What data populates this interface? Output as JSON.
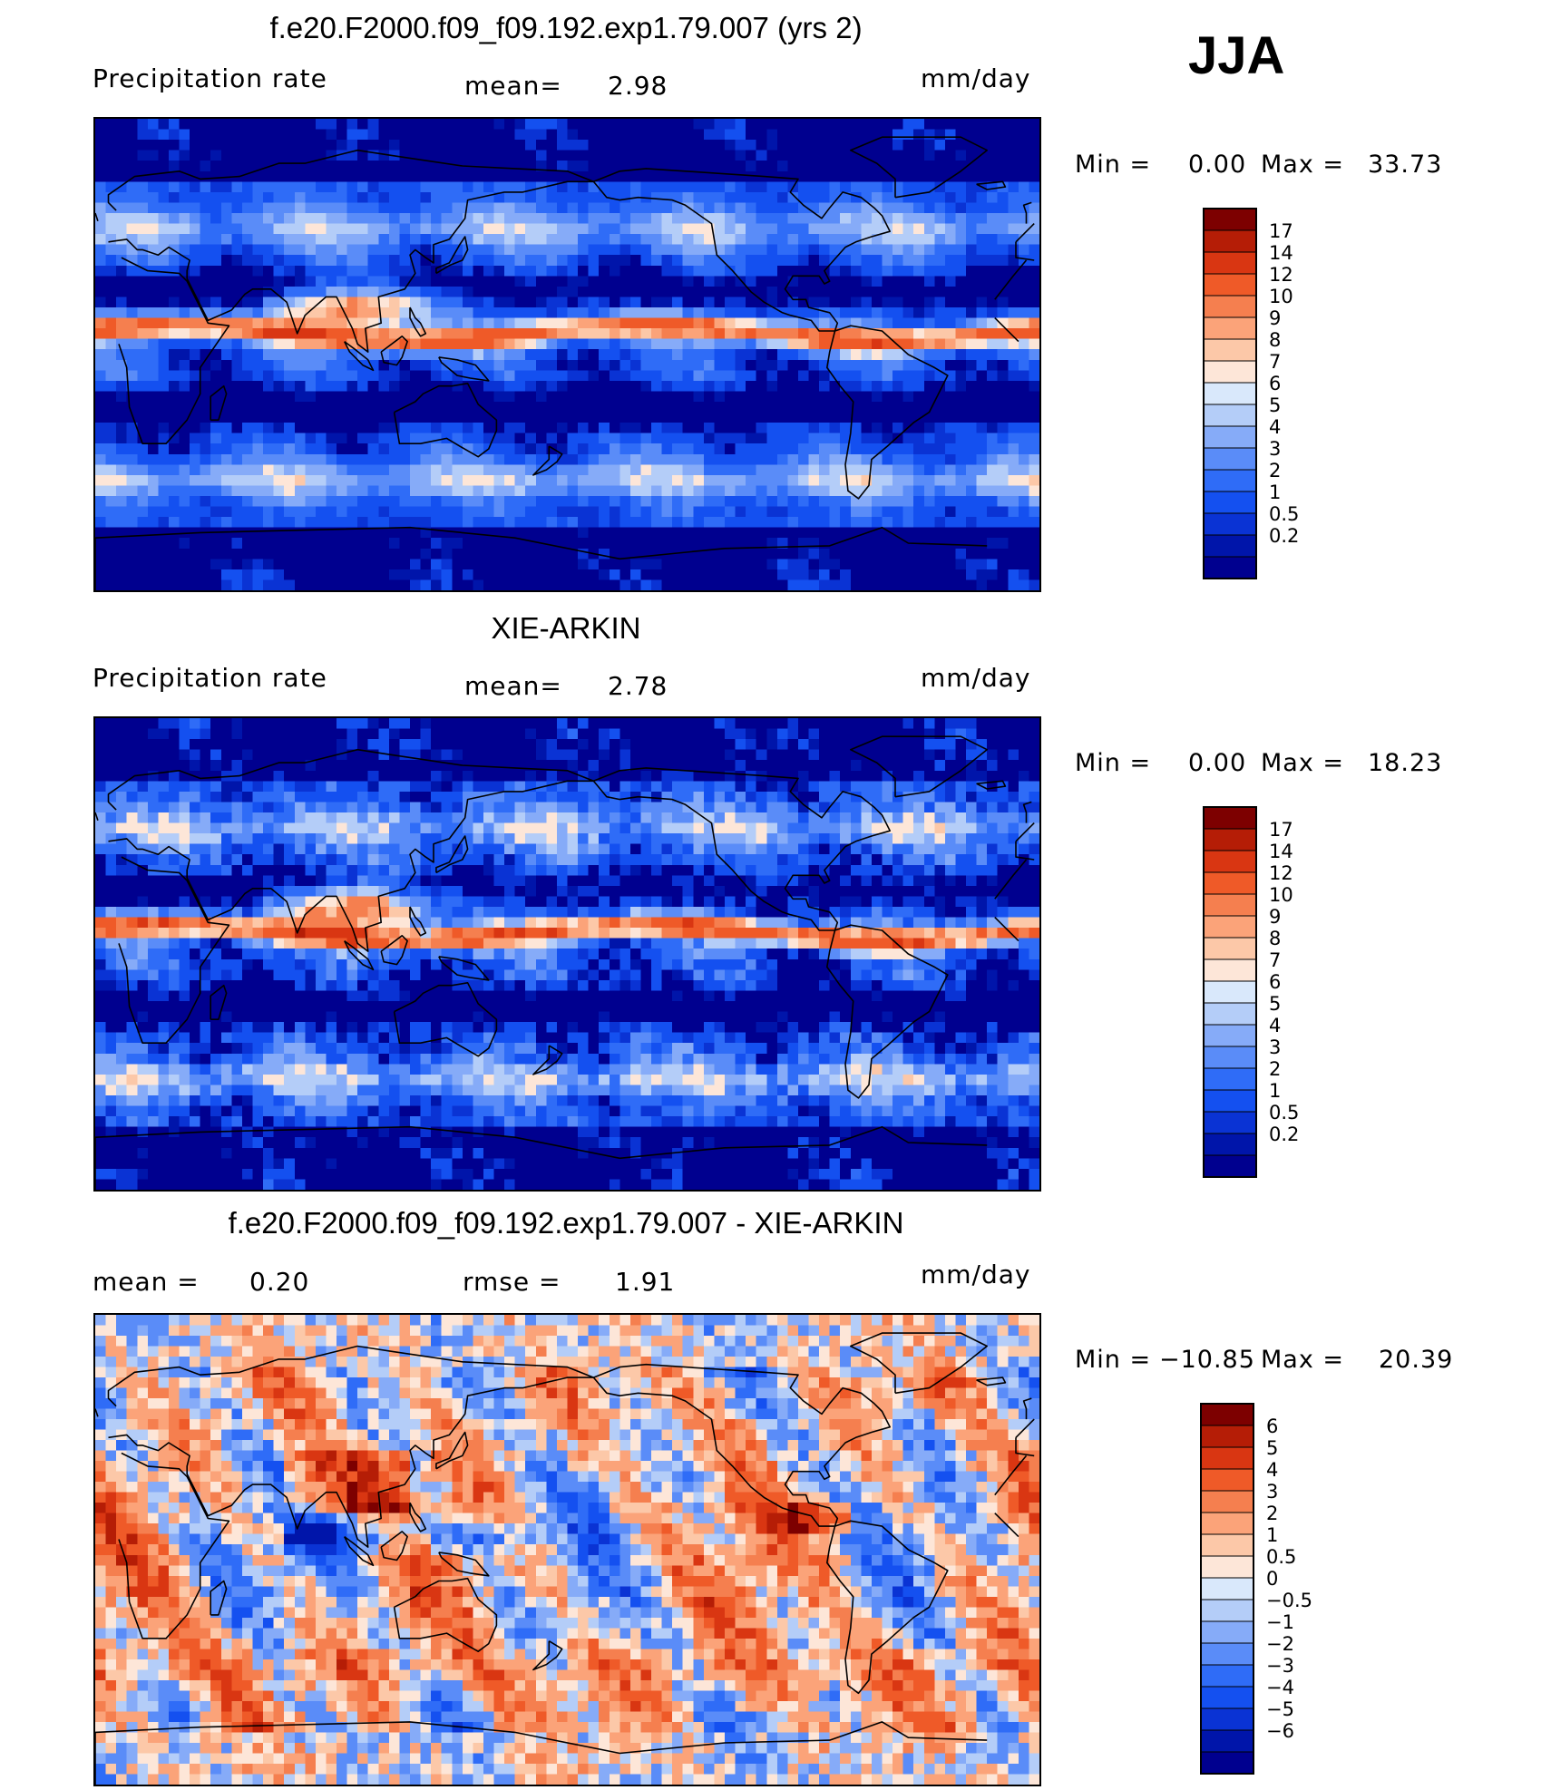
{
  "season": "JJA",
  "colors": {
    "seq": [
      "#00008f",
      "#0015aa",
      "#0a33d4",
      "#1450f0",
      "#2f6cf7",
      "#5a8cf8",
      "#86abf8",
      "#b4cdf8",
      "#d9e8fb",
      "#fde6d8",
      "#fcc8a8",
      "#fba379",
      "#f57f4f",
      "#ef5a28",
      "#d93612",
      "#b51d06",
      "#7d0000"
    ],
    "div": [
      "#00008f",
      "#0015aa",
      "#0a33d4",
      "#1450f0",
      "#2f6cf7",
      "#5a8cf8",
      "#86abf8",
      "#b4cdf8",
      "#d9e8fb",
      "#fde6d8",
      "#fcc8a8",
      "#fba379",
      "#f57f4f",
      "#ef5a28",
      "#d93612",
      "#b51d06",
      "#7d0000"
    ]
  },
  "chart_data": [
    {
      "type": "heatmap",
      "title": "f.e20.F2000.f09_f09.192.exp1.79.007 (yrs 2)",
      "left_label": "Precipitation  rate",
      "mean_label": "mean=",
      "mean_value": "2.98",
      "units": "mm/day",
      "min_label": "Min  =",
      "min_value": "0.00",
      "max_label": "Max  =",
      "max_value": "33.73",
      "levels": [
        "17",
        "14",
        "12",
        "10",
        "9",
        "8",
        "7",
        "6",
        "5",
        "4",
        "3",
        "2",
        "1",
        "0.5",
        "0.2"
      ],
      "scale": "seq"
    },
    {
      "type": "heatmap",
      "title": "XIE-ARKIN",
      "left_label": "Precipitation  rate",
      "mean_label": "mean=",
      "mean_value": "2.78",
      "units": "mm/day",
      "min_label": "Min  =",
      "min_value": "0.00",
      "max_label": "Max  =",
      "max_value": "18.23",
      "levels": [
        "17",
        "14",
        "12",
        "10",
        "9",
        "8",
        "7",
        "6",
        "5",
        "4",
        "3",
        "2",
        "1",
        "0.5",
        "0.2"
      ],
      "scale": "seq"
    },
    {
      "type": "heatmap",
      "title": "f.e20.F2000.f09_f09.192.exp1.79.007 - XIE-ARKIN",
      "left_label": "mean  =",
      "mean_label": "rmse  =",
      "mean_value": "1.91",
      "left_value": "0.20",
      "units": "mm/day",
      "min_label": "Min  =",
      "min_value": "−10.85",
      "max_label": "Max  =",
      "max_value": "20.39",
      "levels": [
        "6",
        "5",
        "4",
        "3",
        "2",
        "1",
        "0.5",
        "0",
        "−0.5",
        "−1",
        "−2",
        "−3",
        "−4",
        "−5",
        "−6"
      ],
      "scale": "div"
    }
  ]
}
